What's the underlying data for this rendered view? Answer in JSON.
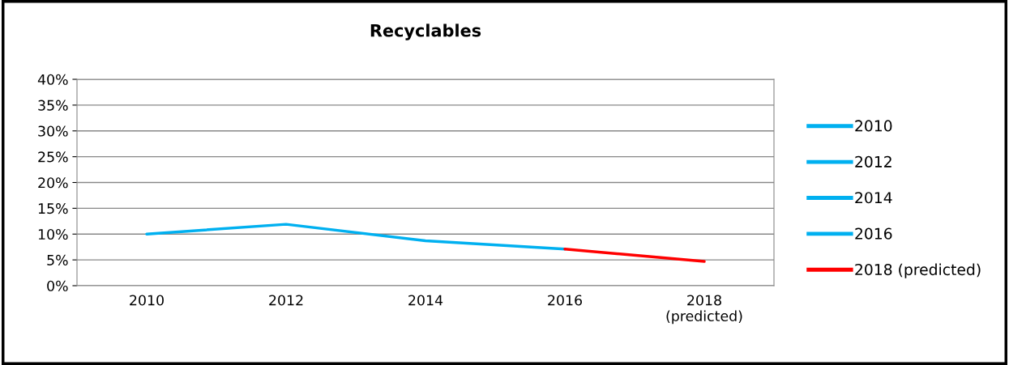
{
  "chart_data": {
    "type": "line",
    "title": "Recyclables",
    "categories": [
      "2010",
      "2012",
      "2014",
      "2016",
      "2018 (predicted)"
    ],
    "colors": [
      "#00b0f0",
      "#00b0f0",
      "#00b0f0",
      "#00b0f0",
      "#ff0000"
    ],
    "series": [
      {
        "color": "#00b0f0",
        "values": [
          10,
          11.9,
          8.7,
          7.1,
          null
        ]
      },
      {
        "name": "2018 (predicted)",
        "color": "#ff0000",
        "values": [
          null,
          null,
          null,
          7.1,
          4.7
        ]
      }
    ],
    "ylim": [
      0,
      40
    ],
    "yticks": [
      {
        "value": 0,
        "label": "0%"
      },
      {
        "value": 5,
        "label": "5%"
      },
      {
        "value": 10,
        "label": "10%"
      },
      {
        "value": 15,
        "label": "15%"
      },
      {
        "value": 20,
        "label": "20%"
      },
      {
        "value": 25,
        "label": "25%"
      },
      {
        "value": 30,
        "label": "30%"
      },
      {
        "value": 35,
        "label": "35%"
      },
      {
        "value": 40,
        "label": "40%"
      }
    ],
    "grid": "y",
    "legend": "right",
    "marker": "none",
    "line_style": "solid"
  }
}
